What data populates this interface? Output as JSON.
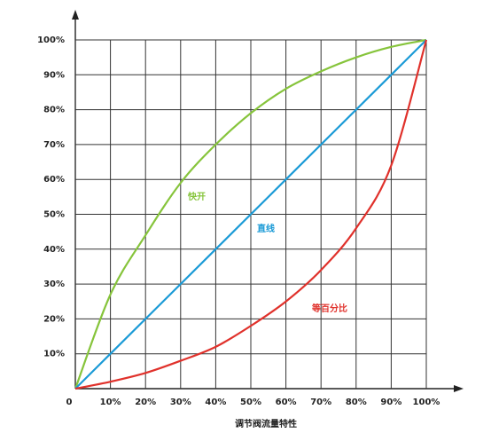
{
  "chart_data": {
    "type": "line",
    "x_label": "调节阀流量特性",
    "x": [
      0,
      10,
      20,
      30,
      40,
      50,
      60,
      70,
      80,
      90,
      100
    ],
    "series": [
      {
        "name": "快开",
        "color": "#86c43b",
        "values": [
          0,
          27,
          44,
          59,
          70,
          79,
          86,
          91,
          95,
          98,
          100
        ]
      },
      {
        "name": "直线",
        "color": "#1a9ad6",
        "values": [
          0,
          10,
          20,
          30,
          40,
          50,
          60,
          70,
          80,
          90,
          100
        ]
      },
      {
        "name": "等百分比",
        "color": "#e0312b",
        "values": [
          0,
          2,
          4.5,
          8,
          12,
          18,
          25,
          34,
          46,
          64,
          100
        ]
      }
    ],
    "xlim": [
      0,
      100
    ],
    "ylim": [
      0,
      100
    ],
    "xticks": [
      0,
      {
        "value": 10,
        "label": "10%"
      },
      {
        "value": 20,
        "label": "20%"
      },
      {
        "value": 30,
        "label": "30%"
      },
      {
        "value": 40,
        "label": "40%"
      },
      {
        "value": 50,
        "label": "50%"
      },
      {
        "value": 60,
        "label": "60%"
      },
      {
        "value": 70,
        "label": "70%"
      },
      {
        "value": 80,
        "label": "80%"
      },
      {
        "value": 90,
        "label": "90%"
      },
      {
        "value": 100,
        "label": "100%"
      }
    ],
    "yticks": [
      {
        "value": 10,
        "label": "10%"
      },
      {
        "value": 20,
        "label": "20%"
      },
      {
        "value": 30,
        "label": "30%"
      },
      {
        "value": 40,
        "label": "40%"
      },
      {
        "value": 50,
        "label": "50%"
      },
      {
        "value": 60,
        "label": "60%"
      },
      {
        "value": 70,
        "label": "70%"
      },
      {
        "value": 80,
        "label": "80%"
      },
      {
        "value": 90,
        "label": "90%"
      },
      {
        "value": 100,
        "label": "100%"
      }
    ],
    "grid": true
  }
}
